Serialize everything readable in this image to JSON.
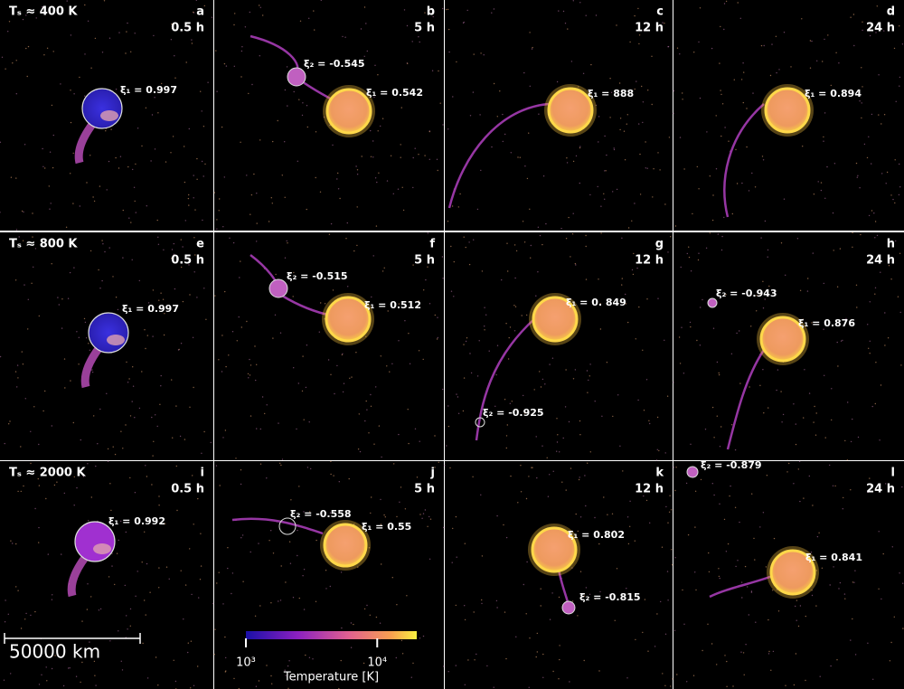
{
  "rows": [
    {
      "label": "Tₛ ≈ 400 K",
      "panels": [
        {
          "letter": "a",
          "time": "0.5 h",
          "annotations": [
            "ξ₁ = 0.997"
          ]
        },
        {
          "letter": "b",
          "time": "5 h",
          "annotations": [
            "ξ₁ = 0.542",
            "ξ₂ = -0.545"
          ]
        },
        {
          "letter": "c",
          "time": "12 h",
          "annotations": [
            "ξ₁ = 888"
          ]
        },
        {
          "letter": "d",
          "time": "24 h",
          "annotations": [
            "ξ₁ = 0.894"
          ]
        }
      ]
    },
    {
      "label": "Tₛ ≈ 800 K",
      "panels": [
        {
          "letter": "e",
          "time": "0.5 h",
          "annotations": [
            "ξ₁ = 0.997"
          ]
        },
        {
          "letter": "f",
          "time": "5 h",
          "annotations": [
            "ξ₁ = 0.512",
            "ξ₂ = -0.515"
          ]
        },
        {
          "letter": "g",
          "time": "12 h",
          "annotations": [
            "ξ₁ = 0. 849",
            "ξ₂ = -0.925"
          ]
        },
        {
          "letter": "h",
          "time": "24 h",
          "annotations": [
            "ξ₁ = 0.876",
            "ξ₂ = -0.943"
          ]
        }
      ]
    },
    {
      "label": "Tₛ ≈ 2000 K",
      "panels": [
        {
          "letter": "i",
          "time": "0.5 h",
          "annotations": [
            "ξ₁ = 0.992"
          ]
        },
        {
          "letter": "j",
          "time": "5 h",
          "annotations": [
            "ξ₁ = 0.55",
            "ξ₂ = -0.558"
          ]
        },
        {
          "letter": "k",
          "time": "12 h",
          "annotations": [
            "ξ₁ = 0.802",
            "ξ₂ = -0.815"
          ]
        },
        {
          "letter": "l",
          "time": "24 h",
          "annotations": [
            "ξ₁ = 0.841",
            "ξ₂ = -0.879"
          ]
        }
      ]
    }
  ],
  "scale_bar": "50000 km",
  "colorbar": {
    "label": "Temperature [K]",
    "log": true,
    "lim": [
      1000,
      20000
    ],
    "ticks": [
      {
        "value": 1000,
        "label": "10³"
      },
      {
        "value": 10000,
        "label": "10⁴"
      }
    ]
  }
}
